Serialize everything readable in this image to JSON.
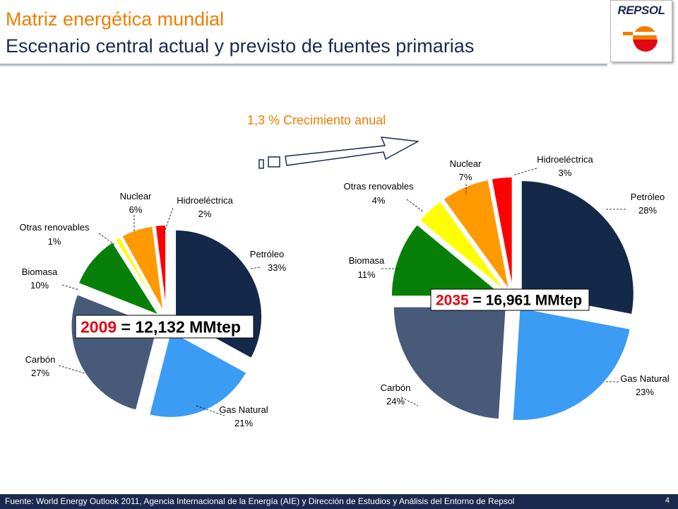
{
  "header": {
    "title": "Matriz energética mundial",
    "subtitle": "Escenario central actual y previsto de fuentes primarias",
    "logo_text": "REPSOL"
  },
  "growth_label": "1,3 % Crecimiento anual",
  "footer": {
    "source": "Fuente: World Energy Outlook 2011, Agencia Internacional de la Energía (AIE) y Dirección de Estudios y  Análisis del Entorno de Repsol",
    "page": "4"
  },
  "colors": {
    "title_orange": "#f07d00",
    "navy": "#1a2a4f",
    "year_red": "#e30613"
  },
  "chart_data": [
    {
      "type": "pie",
      "year": "2009",
      "total_label": "= 12,132 MMtep",
      "slices": [
        {
          "name": "Petróleo",
          "value": 33,
          "label": "33%",
          "color": "#14284a"
        },
        {
          "name": "Gas Natural",
          "value": 21,
          "label": "21%",
          "color": "#3b9cf3"
        },
        {
          "name": "Carbón",
          "value": 27,
          "label": "27%",
          "color": "#485a79"
        },
        {
          "name": "Biomasa",
          "value": 10,
          "label": "10%",
          "color": "#088008"
        },
        {
          "name": "Otras renovables",
          "value": 1,
          "label": "1%",
          "color": "#ffff00"
        },
        {
          "name": "Nuclear",
          "value": 6,
          "label": "6%",
          "color": "#ff9900"
        },
        {
          "name": "Hidroeléctrica",
          "value": 2,
          "label": "2%",
          "color": "#ff0000"
        }
      ]
    },
    {
      "type": "pie",
      "year": "2035",
      "total_label": "= 16,961 MMtep",
      "slices": [
        {
          "name": "Petróleo",
          "value": 28,
          "label": "28%",
          "color": "#14284a"
        },
        {
          "name": "Gas Natural",
          "value": 23,
          "label": "23%",
          "color": "#3b9cf3"
        },
        {
          "name": "Carbón",
          "value": 24,
          "label": "24%",
          "color": "#485a79"
        },
        {
          "name": "Biomasa",
          "value": 11,
          "label": "11%",
          "color": "#088008"
        },
        {
          "name": "Otras renovables",
          "value": 4,
          "label": "4%",
          "color": "#ffff00"
        },
        {
          "name": "Nuclear",
          "value": 7,
          "label": "7%",
          "color": "#ff9900"
        },
        {
          "name": "Hidroeléctrica",
          "value": 3,
          "label": "3%",
          "color": "#ff0000"
        }
      ]
    }
  ]
}
